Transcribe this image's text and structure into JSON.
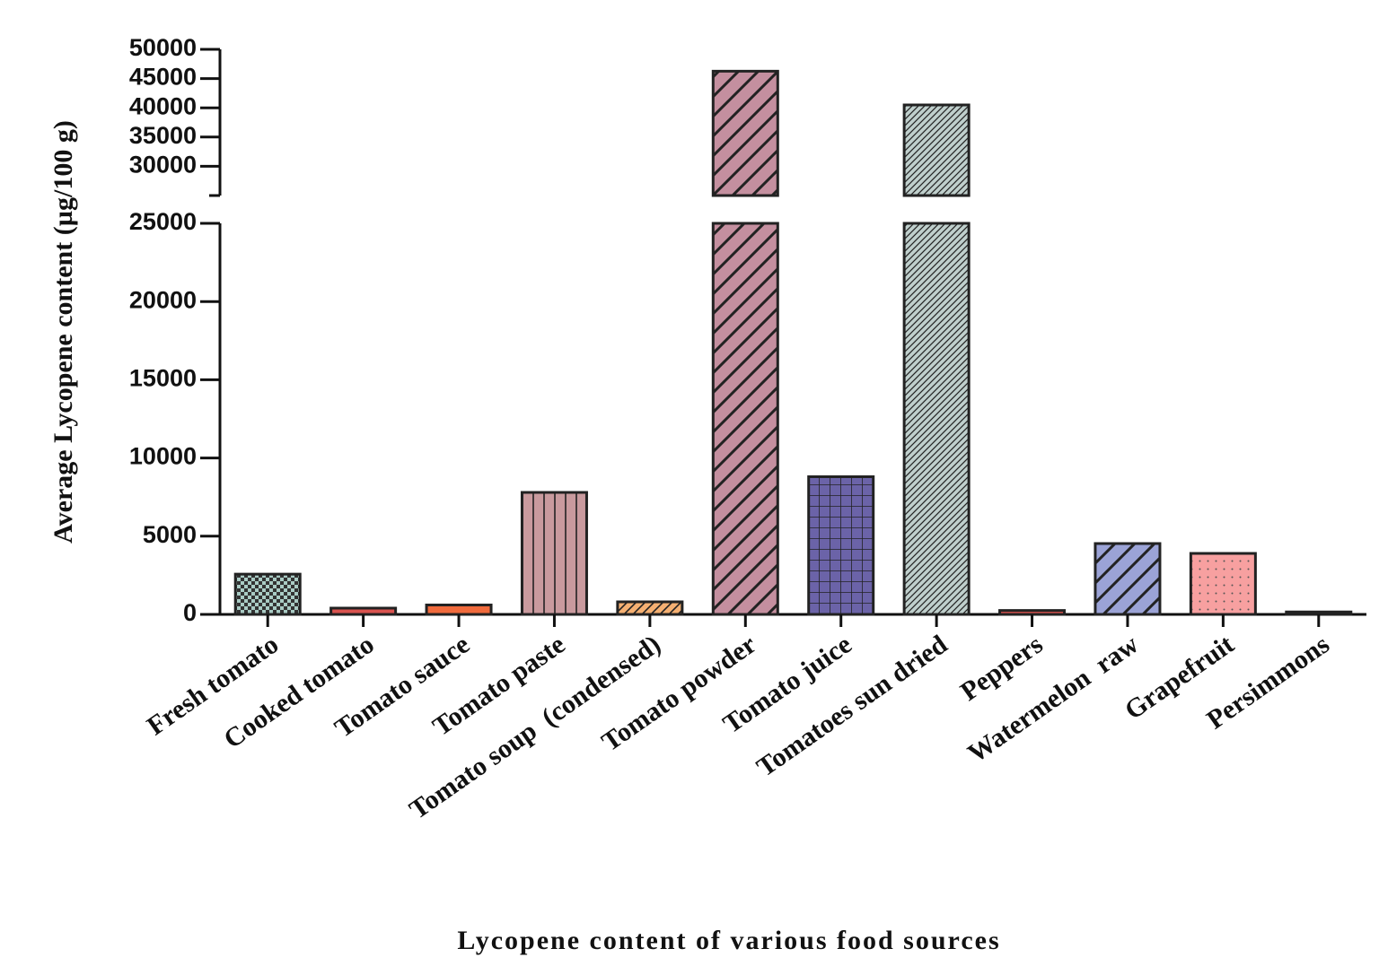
{
  "chart_data": {
    "type": "broken-bar",
    "xlabel": "Lycopene content of various food sources",
    "ylabel": "Average Lycopene content (µg/100 g)",
    "categories": [
      "Fresh tomato",
      "Cooked tomato",
      "Tomato sauce",
      "Tomato paste",
      "Tomato soup  (condensed)",
      "Tomato powder",
      "Tomato juice",
      "Tomatoes sun dried",
      "Peppers",
      "Watermelon  raw",
      "Grapefruit",
      "Persimmons"
    ],
    "values": [
      2573,
      400,
      600,
      7800,
      800,
      46260,
      8800,
      40500,
      250,
      4530,
      3900,
      160
    ],
    "colors": [
      "#a9cbc4",
      "#d9534f",
      "#f06a3c",
      "#c99a9e",
      "#f5b072",
      "#c48f9f",
      "#6b63a8",
      "#bfcfcc",
      "#d9534f",
      "#9ba3d6",
      "#f7a0a0",
      "#444444"
    ],
    "patterns": [
      "checker",
      "solid",
      "solid",
      "vlines",
      "diag",
      "diag-thick",
      "grid",
      "diag-fine",
      "solid",
      "diag-thick",
      "dots",
      "solid"
    ],
    "y_segments": [
      {
        "ylim": [
          0,
          25000
        ],
        "yticks": [
          0,
          5000,
          10000,
          15000,
          20000,
          25000
        ]
      },
      {
        "ylim": [
          25000,
          50000
        ],
        "yticks": [
          30000,
          35000,
          40000,
          45000,
          50000
        ]
      }
    ]
  }
}
